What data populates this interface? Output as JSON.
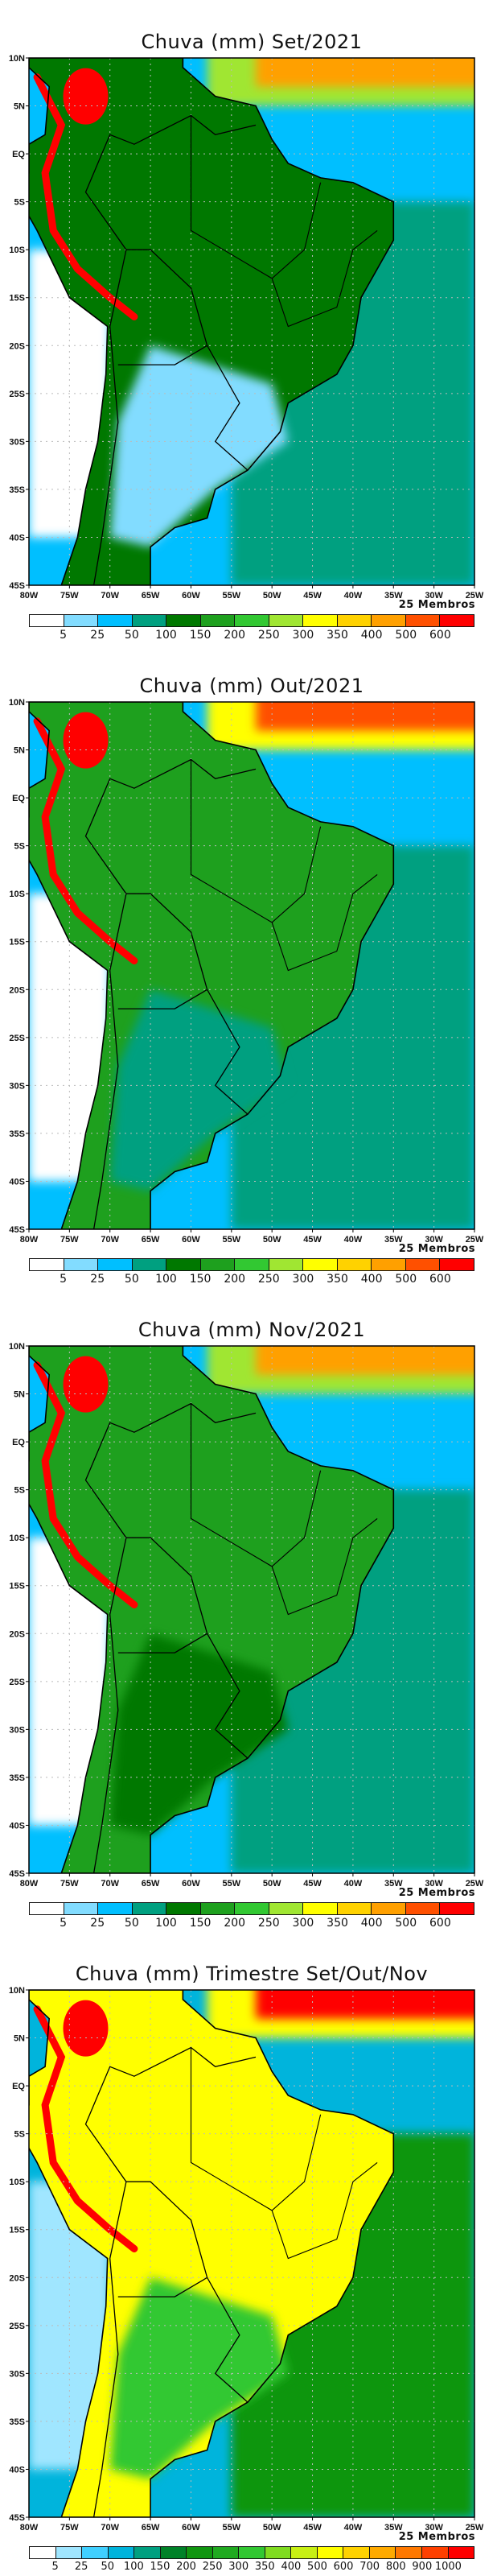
{
  "membros_label": "25 Membros",
  "x_ticks": [
    "80W",
    "75W",
    "70W",
    "65W",
    "60W",
    "55W",
    "50W",
    "45W",
    "40W",
    "35W",
    "30W",
    "25W"
  ],
  "y_ticks": [
    "10N",
    "5N",
    "EQ",
    "5S",
    "10S",
    "15S",
    "20S",
    "25S",
    "30S",
    "35S",
    "40S",
    "45S"
  ],
  "chart_data": [
    {
      "type": "heatmap",
      "title": "Chuva (mm) Set/2021",
      "variable": "precipitation (mm)",
      "xlim": [
        "80W",
        "25W"
      ],
      "ylim": [
        "45S",
        "10N"
      ],
      "colorbar_labels": [
        "5",
        "25",
        "50",
        "100",
        "150",
        "200",
        "250",
        "300",
        "350",
        "400",
        "500",
        "600"
      ],
      "colors": [
        "#ffffff",
        "#82dcff",
        "#00bfff",
        "#00a080",
        "#007800",
        "#1ea01e",
        "#32c832",
        "#a0e632",
        "#ffff00",
        "#ffd200",
        "#ffa000",
        "#ff5000",
        "#ff0000"
      ]
    },
    {
      "type": "heatmap",
      "title": "Chuva (mm) Out/2021",
      "variable": "precipitation (mm)",
      "xlim": [
        "80W",
        "25W"
      ],
      "ylim": [
        "45S",
        "10N"
      ],
      "colorbar_labels": [
        "5",
        "25",
        "50",
        "100",
        "150",
        "200",
        "250",
        "300",
        "350",
        "400",
        "500",
        "600"
      ],
      "colors": [
        "#ffffff",
        "#82dcff",
        "#00bfff",
        "#00a080",
        "#007800",
        "#1ea01e",
        "#32c832",
        "#a0e632",
        "#ffff00",
        "#ffd200",
        "#ffa000",
        "#ff5000",
        "#ff0000"
      ]
    },
    {
      "type": "heatmap",
      "title": "Chuva (mm) Nov/2021",
      "variable": "precipitation (mm)",
      "xlim": [
        "80W",
        "25W"
      ],
      "ylim": [
        "45S",
        "10N"
      ],
      "colorbar_labels": [
        "5",
        "25",
        "50",
        "100",
        "150",
        "200",
        "250",
        "300",
        "350",
        "400",
        "500",
        "600"
      ],
      "colors": [
        "#ffffff",
        "#82dcff",
        "#00bfff",
        "#00a080",
        "#007800",
        "#1ea01e",
        "#32c832",
        "#a0e632",
        "#ffff00",
        "#ffd200",
        "#ffa000",
        "#ff5000",
        "#ff0000"
      ]
    },
    {
      "type": "heatmap",
      "title": "Chuva (mm) Trimestre Set/Out/Nov",
      "variable": "precipitation (mm)",
      "xlim": [
        "80W",
        "25W"
      ],
      "ylim": [
        "45S",
        "10N"
      ],
      "colorbar_labels": [
        "5",
        "25",
        "50",
        "100",
        "150",
        "200",
        "250",
        "300",
        "350",
        "400",
        "500",
        "600",
        "700",
        "800",
        "900",
        "1000"
      ],
      "colors": [
        "#ffffff",
        "#a0e6ff",
        "#40d0ff",
        "#00b4dc",
        "#00a080",
        "#008228",
        "#109610",
        "#20aa20",
        "#32c832",
        "#80dc20",
        "#c8f014",
        "#ffff00",
        "#ffd200",
        "#ffaa00",
        "#ff7800",
        "#ff4000",
        "#ff0000"
      ]
    }
  ]
}
